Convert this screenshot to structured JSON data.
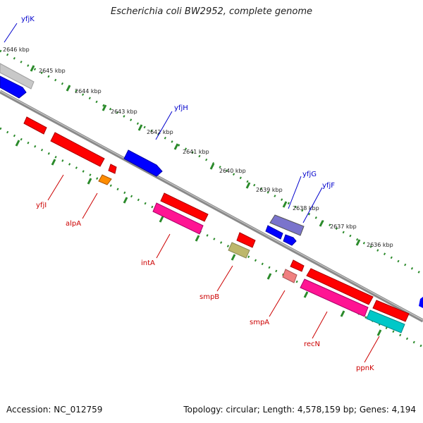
{
  "title": "Escherichia coli BW2952, complete genome",
  "footer": {
    "accession": "Accession: NC_012759",
    "summary": "Topology: circular; Length: 4,578,159 bp; Genes: 4,194"
  },
  "kbp_labels": [
    "2646 kbp",
    "2645 kbp",
    "2644 kbp",
    "2643 kbp",
    "2642 kbp",
    "2641 kbp",
    "2640 kbp",
    "2639 kbp",
    "2638 kbp",
    "2637 kbp",
    "2636 kbp"
  ],
  "genes": [
    {
      "name": "yfjK",
      "strand": "forward",
      "color": "#0000cc"
    },
    {
      "name": "yfjH",
      "strand": "forward",
      "color": "#0000cc"
    },
    {
      "name": "yfjG",
      "strand": "forward",
      "color": "#0000cc"
    },
    {
      "name": "yfjF",
      "strand": "forward",
      "color": "#0000cc"
    },
    {
      "name": "yfjI",
      "strand": "reverse",
      "color": "#cc0000"
    },
    {
      "name": "alpA",
      "strand": "reverse",
      "color": "#cc0000"
    },
    {
      "name": "intA",
      "strand": "reverse",
      "color": "#cc0000"
    },
    {
      "name": "smpB",
      "strand": "reverse",
      "color": "#cc0000"
    },
    {
      "name": "smpA",
      "strand": "reverse",
      "color": "#cc0000"
    },
    {
      "name": "recN",
      "strand": "reverse",
      "color": "#cc0000"
    },
    {
      "name": "ppnK",
      "strand": "reverse",
      "color": "#cc0000"
    }
  ],
  "colors": {
    "forward_gene": "#0000ff",
    "reverse_gene": "#ff0000",
    "backbone": "#777777",
    "tick": "#2a8a2a"
  }
}
